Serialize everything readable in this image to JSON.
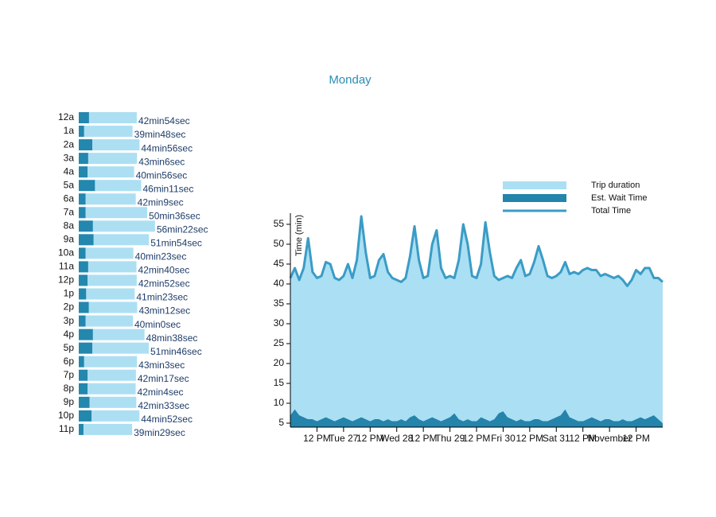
{
  "title": "Monday",
  "chart_data": [
    {
      "type": "bar",
      "orientation": "horizontal",
      "categories": [
        "12a",
        "1a",
        "2a",
        "3a",
        "4a",
        "5a",
        "6a",
        "7a",
        "8a",
        "9a",
        "10a",
        "11a",
        "12p",
        "1p",
        "2p",
        "3p",
        "4p",
        "5p",
        "6p",
        "7p",
        "8p",
        "9p",
        "10p",
        "11p"
      ],
      "series": [
        {
          "color": "#2387ae",
          "values": [
            7.6,
            4,
            10,
            7,
            6.5,
            12,
            5,
            5,
            10.5,
            11,
            5,
            7,
            6.5,
            5.5,
            7.5,
            5,
            10.5,
            10,
            4,
            6.5,
            6.5,
            8,
            9.5,
            3.5
          ]
        },
        {
          "color": "#addff3",
          "values": [
            35.3,
            35.8,
            34.93,
            36.1,
            34.43,
            34.18,
            37.15,
            45.6,
            45.87,
            40.9,
            35.38,
            35.67,
            36.37,
            35.88,
            35.7,
            35,
            38.13,
            41.77,
            39.05,
            35.78,
            35.57,
            34.55,
            35.37,
            35.98
          ]
        }
      ],
      "totals": {
        "values": [
          42.9,
          39.8,
          44.93,
          43.1,
          40.93,
          46.18,
          42.15,
          50.6,
          56.37,
          51.9,
          40.38,
          42.67,
          42.87,
          41.38,
          43.2,
          40,
          48.63,
          51.77,
          43.05,
          42.28,
          42.07,
          42.55,
          44.87,
          39.48
        ],
        "value_labels": [
          "42min54sec",
          "39min48sec",
          "44min56sec",
          "43min6sec",
          "40min56sec",
          "46min11sec",
          "42min9sec",
          "50min36sec",
          "56min22sec",
          "51min54sec",
          "40min23sec",
          "42min40sec",
          "42min52sec",
          "41min23sec",
          "43min12sec",
          "40min0sec",
          "48min38sec",
          "51min46sec",
          "43min3sec",
          "42min17sec",
          "42min4sec",
          "42min33sec",
          "44min52sec",
          "39min29sec"
        ]
      }
    },
    {
      "type": "area",
      "y_label": "Time (min)",
      "x": [
        0,
        2,
        4,
        6,
        8,
        10,
        12,
        14,
        16,
        18,
        20,
        22,
        24,
        26,
        28,
        30,
        32,
        34,
        36,
        38,
        40,
        42,
        44,
        46,
        48,
        50,
        52,
        54,
        56,
        58,
        60,
        62,
        64,
        66,
        68,
        70,
        72,
        74,
        76,
        78,
        80,
        82,
        84,
        86,
        88,
        90,
        92,
        94,
        96,
        98,
        100,
        102,
        104,
        106,
        108,
        110,
        112,
        114,
        116,
        118,
        120,
        122,
        124,
        126,
        128,
        130,
        132,
        134,
        136,
        138,
        140,
        142,
        144,
        146,
        148,
        150,
        152,
        154,
        156,
        158,
        160,
        162,
        164,
        166,
        168
      ],
      "xlim": [
        0,
        168
      ],
      "xticks": [
        {
          "value": 12,
          "label": "12 PM"
        },
        {
          "value": 24,
          "label": "Tue 27"
        },
        {
          "value": 36,
          "label": "12 PM"
        },
        {
          "value": 48,
          "label": "Wed 28"
        },
        {
          "value": 60,
          "label": "12 PM"
        },
        {
          "value": 72,
          "label": "Thu 29"
        },
        {
          "value": 84,
          "label": "12 PM"
        },
        {
          "value": 96,
          "label": "Fri 30"
        },
        {
          "value": 108,
          "label": "12 PM"
        },
        {
          "value": 120,
          "label": "Sat 31"
        },
        {
          "value": 132,
          "label": "12 PM"
        },
        {
          "value": 144,
          "label": "November"
        },
        {
          "value": 156,
          "label": "12 PM"
        }
      ],
      "ylim": [
        4,
        57.8
      ],
      "yticks": [
        5,
        10,
        15,
        20,
        25,
        30,
        35,
        40,
        45,
        50,
        55
      ],
      "legend": "top-right",
      "series": [
        {
          "name": "Trip duration",
          "color": "#abdff3",
          "values": [
            34.5,
            35.5,
            34,
            37.5,
            45.5,
            37,
            36,
            36,
            39,
            39,
            36,
            35,
            35.5,
            39,
            36,
            40,
            50.5,
            42,
            36,
            36,
            40,
            42,
            37,
            36,
            35.5,
            34.5,
            36,
            40.5,
            47.5,
            40,
            36,
            36,
            43.5,
            47.5,
            38.5,
            35.5,
            35.5,
            34,
            40,
            49.5,
            44,
            36.5,
            36,
            38.5,
            49.5,
            42.5,
            36,
            33.5,
            33.5,
            35.5,
            35.5,
            38.5,
            40,
            36.5,
            37,
            39.5,
            43.5,
            40.5,
            36.5,
            35.5,
            35.5,
            36,
            37,
            36,
            37,
            37,
            38,
            38,
            37,
            37.5,
            36.5,
            36.5,
            36,
            36,
            36.5,
            35,
            34,
            35.5,
            37.5,
            36,
            38,
            37.5,
            34.5,
            35.5,
            35.5
          ]
        },
        {
          "name": "Est. Wait Time",
          "color": "#2484ab",
          "values": [
            7,
            8.5,
            7,
            6.5,
            6,
            6,
            5.5,
            6,
            6.5,
            6,
            5.5,
            6,
            6.5,
            6,
            5.5,
            6,
            6.5,
            6,
            5.5,
            6,
            6,
            5.5,
            6,
            5.5,
            5.5,
            6,
            5.5,
            6.5,
            7,
            6,
            5.5,
            6,
            6.5,
            6,
            5.5,
            6,
            6.5,
            7.5,
            6,
            5.5,
            6,
            5.5,
            5.5,
            6.5,
            6,
            5.5,
            6,
            7.5,
            8,
            6.5,
            6,
            5.5,
            6,
            5.5,
            5.5,
            6,
            6,
            5.5,
            5.5,
            6,
            6.5,
            7,
            8.5,
            6.5,
            6,
            5.5,
            5.5,
            6,
            6.5,
            6,
            5.5,
            6,
            6,
            5.5,
            5.5,
            6,
            5.5,
            5.5,
            6,
            6.5,
            6,
            6.5,
            7,
            6,
            5
          ]
        },
        {
          "name": "Total Time",
          "type": "line",
          "color": "#3a9cc5",
          "values": [
            41.5,
            44,
            41,
            44,
            51.5,
            43,
            41.5,
            42,
            45.5,
            45,
            41.5,
            41,
            42,
            45,
            41.5,
            46,
            57,
            48,
            41.5,
            42,
            46,
            47.5,
            43,
            41.5,
            41,
            40.5,
            41.5,
            47,
            54.5,
            46,
            41.5,
            42,
            50,
            53.5,
            44,
            41.5,
            42,
            41.5,
            46,
            55,
            50,
            42,
            41.5,
            45,
            55.5,
            48,
            42,
            41,
            41.5,
            42,
            41.5,
            44,
            46,
            42,
            42.5,
            45.5,
            49.5,
            46,
            42,
            41.5,
            42,
            43,
            45.5,
            42.5,
            43,
            42.5,
            43.5,
            44,
            43.5,
            43.5,
            42,
            42.5,
            42,
            41.5,
            42,
            41,
            39.5,
            41,
            43.5,
            42.5,
            44,
            44,
            41.5,
            41.5,
            40.5
          ]
        }
      ]
    }
  ]
}
